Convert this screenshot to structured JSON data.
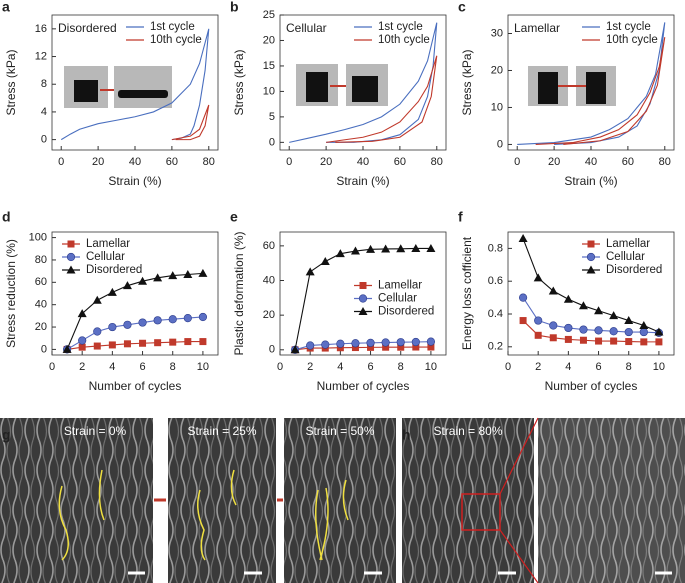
{
  "chart_data": [
    {
      "type": "line",
      "panel": "a",
      "title": "Disordered",
      "xlabel": "Strain (%)",
      "ylabel": "Stress (kPa)",
      "xlim": [
        -5,
        85
      ],
      "xticks": [
        0,
        20,
        40,
        60,
        80
      ],
      "ylim": [
        -1.5,
        18
      ],
      "yticks": [
        0,
        4,
        8,
        12,
        16
      ],
      "legend": "upper right",
      "series": [
        {
          "name": "1st cycle",
          "color": "#4a6fbf",
          "x": [
            0,
            5,
            10,
            20,
            30,
            40,
            50,
            60,
            70,
            75,
            80,
            78,
            75,
            72,
            70,
            65,
            60
          ],
          "values": [
            0,
            0.8,
            1.5,
            2.3,
            2.8,
            3.3,
            4.0,
            5.3,
            8,
            11,
            16,
            10,
            5,
            2,
            0.8,
            0.2,
            0
          ]
        },
        {
          "name": "10th cycle",
          "color": "#c0392b",
          "x": [
            60,
            70,
            75,
            80,
            78,
            75,
            70,
            62
          ],
          "values": [
            0,
            0.5,
            1.5,
            5,
            2,
            0.5,
            0,
            0
          ]
        }
      ]
    },
    {
      "type": "line",
      "panel": "b",
      "title": "Cellular",
      "xlabel": "Strain (%)",
      "ylabel": "Stress (kPa)",
      "xlim": [
        -5,
        85
      ],
      "xticks": [
        0,
        20,
        40,
        60,
        80
      ],
      "ylim": [
        -1.5,
        25
      ],
      "yticks": [
        0,
        5,
        10,
        15,
        20,
        25
      ],
      "legend": "upper right",
      "series": [
        {
          "name": "1st cycle",
          "color": "#4a6fbf",
          "x": [
            0,
            10,
            20,
            30,
            40,
            50,
            60,
            70,
            75,
            80,
            78,
            75,
            70,
            60,
            50,
            35,
            20
          ],
          "values": [
            0,
            0.8,
            1.6,
            2.5,
            3.5,
            5,
            7.5,
            12,
            16,
            23.5,
            15,
            9,
            4.5,
            1.5,
            0.5,
            0,
            0
          ]
        },
        {
          "name": "10th cycle",
          "color": "#c0392b",
          "x": [
            20,
            40,
            50,
            60,
            70,
            75,
            80,
            77,
            72,
            60,
            45,
            25
          ],
          "values": [
            0,
            1,
            2,
            4,
            8,
            11,
            17,
            9,
            4,
            1,
            0.2,
            0
          ]
        }
      ]
    },
    {
      "type": "line",
      "panel": "c",
      "title": "Lamellar",
      "xlabel": "Strain (%)",
      "ylabel": "Stress (kPa)",
      "xlim": [
        -5,
        85
      ],
      "xticks": [
        0,
        20,
        40,
        60,
        80
      ],
      "ylim": [
        -1.5,
        35
      ],
      "yticks": [
        0,
        10,
        20,
        30
      ],
      "legend": "upper right",
      "series": [
        {
          "name": "1st cycle",
          "color": "#4a6fbf",
          "x": [
            0,
            20,
            40,
            50,
            60,
            70,
            75,
            80,
            77,
            72,
            65,
            55,
            40,
            20
          ],
          "values": [
            0,
            0.5,
            2,
            4,
            7,
            13,
            19,
            33,
            20,
            11,
            5,
            2,
            0.5,
            0
          ]
        },
        {
          "name": "10th cycle",
          "color": "#c0392b",
          "x": [
            10,
            30,
            45,
            55,
            65,
            72,
            77,
            80,
            76,
            70,
            60,
            45,
            25
          ],
          "values": [
            0,
            0.5,
            2,
            4,
            8,
            14,
            21,
            29,
            16,
            9,
            3.5,
            1,
            0
          ]
        }
      ]
    },
    {
      "type": "line",
      "panel": "d",
      "xlabel": "Number of cycles",
      "ylabel": "Stress reduction (%)",
      "xlim": [
        0,
        11
      ],
      "xticks": [
        0,
        2,
        4,
        6,
        8,
        10
      ],
      "ylim": [
        -5,
        105
      ],
      "yticks": [
        0,
        20,
        40,
        60,
        80,
        100
      ],
      "legend": "upper left",
      "x": [
        1,
        2,
        3,
        4,
        5,
        6,
        7,
        8,
        9,
        10
      ],
      "series": [
        {
          "name": "Lamellar",
          "color": "#c0392b",
          "marker": "square",
          "values": [
            0,
            2,
            3,
            4,
            5,
            5.5,
            6,
            6.5,
            7,
            7
          ]
        },
        {
          "name": "Cellular",
          "color": "#5b6fc4",
          "marker": "circle",
          "values": [
            0,
            8,
            16,
            20,
            22,
            24,
            26,
            27,
            28,
            29
          ]
        },
        {
          "name": "Disordered",
          "color": "#111111",
          "marker": "triangle",
          "values": [
            0,
            32,
            44,
            51,
            57,
            61,
            64,
            66,
            67,
            68
          ]
        }
      ]
    },
    {
      "type": "line",
      "panel": "e",
      "xlabel": "Number of cycles",
      "ylabel": "Plastic deformation (%)",
      "xlim": [
        0,
        11
      ],
      "xticks": [
        0,
        2,
        4,
        6,
        8,
        10
      ],
      "ylim": [
        -3,
        68
      ],
      "yticks": [
        0,
        20,
        40,
        60
      ],
      "legend": "center right",
      "x": [
        1,
        2,
        3,
        4,
        5,
        6,
        7,
        8,
        9,
        10
      ],
      "series": [
        {
          "name": "Lamellar",
          "color": "#c0392b",
          "marker": "square",
          "values": [
            0,
            1,
            1,
            1.2,
            1.3,
            1.4,
            1.5,
            1.5,
            1.6,
            1.6
          ]
        },
        {
          "name": "Cellular",
          "color": "#5b6fc4",
          "marker": "circle",
          "values": [
            0,
            2.5,
            3,
            3.5,
            3.8,
            4,
            4.2,
            4.4,
            4.5,
            4.7
          ]
        },
        {
          "name": "Disordered",
          "color": "#111111",
          "marker": "triangle",
          "values": [
            0,
            45,
            51,
            55.5,
            57,
            58,
            58.2,
            58.3,
            58.5,
            58.5
          ]
        }
      ]
    },
    {
      "type": "line",
      "panel": "f",
      "xlabel": "Number of cycles",
      "ylabel": "Energy loss cofficient",
      "xlim": [
        0,
        11
      ],
      "xticks": [
        0,
        2,
        4,
        6,
        8,
        10
      ],
      "ylim": [
        0.15,
        0.9
      ],
      "yticks": [
        0.2,
        0.4,
        0.6,
        0.8
      ],
      "legend": "upper right",
      "x": [
        1,
        2,
        3,
        4,
        5,
        6,
        7,
        8,
        9,
        10
      ],
      "series": [
        {
          "name": "Lamellar",
          "color": "#c0392b",
          "marker": "square",
          "values": [
            0.36,
            0.27,
            0.255,
            0.245,
            0.24,
            0.235,
            0.235,
            0.232,
            0.23,
            0.23
          ]
        },
        {
          "name": "Cellular",
          "color": "#5b6fc4",
          "marker": "circle",
          "values": [
            0.5,
            0.36,
            0.33,
            0.315,
            0.305,
            0.3,
            0.295,
            0.29,
            0.29,
            0.285
          ]
        },
        {
          "name": "Disordered",
          "color": "#111111",
          "marker": "triangle",
          "values": [
            0.86,
            0.62,
            0.54,
            0.49,
            0.45,
            0.42,
            0.39,
            0.36,
            0.33,
            0.29
          ]
        }
      ]
    }
  ],
  "micrographs": {
    "g": {
      "panel": "g",
      "captions": [
        "Strain = 0%",
        "Strain = 25%",
        "Strain = 50%"
      ]
    },
    "h": {
      "panel": "h",
      "captions": [
        "Strain = 80%"
      ]
    }
  }
}
